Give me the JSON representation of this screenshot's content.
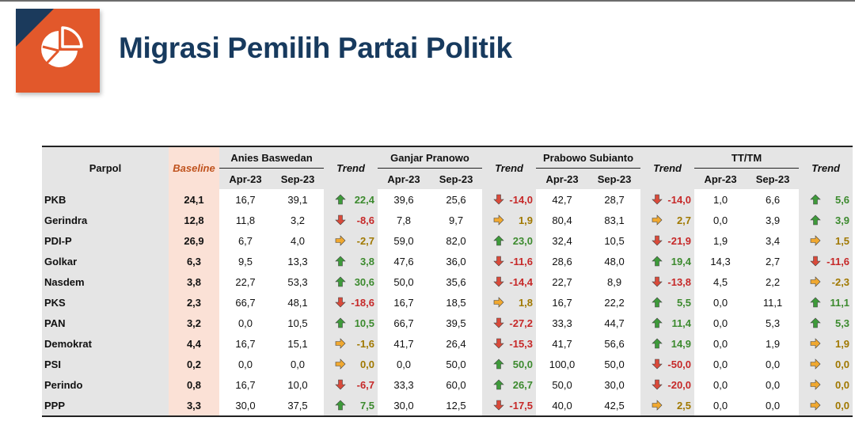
{
  "title": "Migrasi Pemilih Partai Politik",
  "logo_icon": "pie-chart-icon",
  "colors": {
    "logo_bg": "#e2582b",
    "logo_corner": "#1b3a5c",
    "title": "#173a5e",
    "trend_up": "#3c8a2e",
    "trend_down": "#c62828",
    "trend_flat": "#a07800",
    "arrow_up": "#3e9a3a",
    "arrow_down": "#d94a3a",
    "arrow_flat": "#f0a830"
  },
  "table": {
    "header": {
      "parpol": "Parpol",
      "baseline": "Baseline",
      "trend": "Trend",
      "groups": [
        "Anies Baswedan",
        "Ganjar Pranowo",
        "Prabowo Subianto",
        "TT/TM"
      ],
      "periods": [
        "Apr-23",
        "Sep-23"
      ]
    },
    "rows": [
      {
        "party": "PKB",
        "baseline": "24,1",
        "cells": [
          {
            "apr": "16,7",
            "sep": "39,1",
            "trend": "22,4",
            "dir": "up"
          },
          {
            "apr": "39,6",
            "sep": "25,6",
            "trend": "-14,0",
            "dir": "down"
          },
          {
            "apr": "42,7",
            "sep": "28,7",
            "trend": "-14,0",
            "dir": "down"
          },
          {
            "apr": "1,0",
            "sep": "6,6",
            "trend": "5,6",
            "dir": "up"
          }
        ]
      },
      {
        "party": "Gerindra",
        "baseline": "12,8",
        "cells": [
          {
            "apr": "11,8",
            "sep": "3,2",
            "trend": "-8,6",
            "dir": "down"
          },
          {
            "apr": "7,8",
            "sep": "9,7",
            "trend": "1,9",
            "dir": "flat"
          },
          {
            "apr": "80,4",
            "sep": "83,1",
            "trend": "2,7",
            "dir": "flat"
          },
          {
            "apr": "0,0",
            "sep": "3,9",
            "trend": "3,9",
            "dir": "up"
          }
        ]
      },
      {
        "party": "PDI-P",
        "baseline": "26,9",
        "cells": [
          {
            "apr": "6,7",
            "sep": "4,0",
            "trend": "-2,7",
            "dir": "flat"
          },
          {
            "apr": "59,0",
            "sep": "82,0",
            "trend": "23,0",
            "dir": "up"
          },
          {
            "apr": "32,4",
            "sep": "10,5",
            "trend": "-21,9",
            "dir": "down"
          },
          {
            "apr": "1,9",
            "sep": "3,4",
            "trend": "1,5",
            "dir": "flat"
          }
        ]
      },
      {
        "party": "Golkar",
        "baseline": "6,3",
        "cells": [
          {
            "apr": "9,5",
            "sep": "13,3",
            "trend": "3,8",
            "dir": "up"
          },
          {
            "apr": "47,6",
            "sep": "36,0",
            "trend": "-11,6",
            "dir": "down"
          },
          {
            "apr": "28,6",
            "sep": "48,0",
            "trend": "19,4",
            "dir": "up"
          },
          {
            "apr": "14,3",
            "sep": "2,7",
            "trend": "-11,6",
            "dir": "down"
          }
        ]
      },
      {
        "party": "Nasdem",
        "baseline": "3,8",
        "cells": [
          {
            "apr": "22,7",
            "sep": "53,3",
            "trend": "30,6",
            "dir": "up"
          },
          {
            "apr": "50,0",
            "sep": "35,6",
            "trend": "-14,4",
            "dir": "down"
          },
          {
            "apr": "22,7",
            "sep": "8,9",
            "trend": "-13,8",
            "dir": "down"
          },
          {
            "apr": "4,5",
            "sep": "2,2",
            "trend": "-2,3",
            "dir": "flat"
          }
        ]
      },
      {
        "party": "PKS",
        "baseline": "2,3",
        "cells": [
          {
            "apr": "66,7",
            "sep": "48,1",
            "trend": "-18,6",
            "dir": "down"
          },
          {
            "apr": "16,7",
            "sep": "18,5",
            "trend": "1,8",
            "dir": "flat"
          },
          {
            "apr": "16,7",
            "sep": "22,2",
            "trend": "5,5",
            "dir": "up"
          },
          {
            "apr": "0,0",
            "sep": "11,1",
            "trend": "11,1",
            "dir": "up"
          }
        ]
      },
      {
        "party": "PAN",
        "baseline": "3,2",
        "cells": [
          {
            "apr": "0,0",
            "sep": "10,5",
            "trend": "10,5",
            "dir": "up"
          },
          {
            "apr": "66,7",
            "sep": "39,5",
            "trend": "-27,2",
            "dir": "down"
          },
          {
            "apr": "33,3",
            "sep": "44,7",
            "trend": "11,4",
            "dir": "up"
          },
          {
            "apr": "0,0",
            "sep": "5,3",
            "trend": "5,3",
            "dir": "up"
          }
        ]
      },
      {
        "party": "Demokrat",
        "baseline": "4,4",
        "cells": [
          {
            "apr": "16,7",
            "sep": "15,1",
            "trend": "-1,6",
            "dir": "flat"
          },
          {
            "apr": "41,7",
            "sep": "26,4",
            "trend": "-15,3",
            "dir": "down"
          },
          {
            "apr": "41,7",
            "sep": "56,6",
            "trend": "14,9",
            "dir": "up"
          },
          {
            "apr": "0,0",
            "sep": "1,9",
            "trend": "1,9",
            "dir": "flat"
          }
        ]
      },
      {
        "party": "PSI",
        "baseline": "0,2",
        "cells": [
          {
            "apr": "0,0",
            "sep": "0,0",
            "trend": "0,0",
            "dir": "flat"
          },
          {
            "apr": "0,0",
            "sep": "50,0",
            "trend": "50,0",
            "dir": "up"
          },
          {
            "apr": "100,0",
            "sep": "50,0",
            "trend": "-50,0",
            "dir": "down"
          },
          {
            "apr": "0,0",
            "sep": "0,0",
            "trend": "0,0",
            "dir": "flat"
          }
        ]
      },
      {
        "party": "Perindo",
        "baseline": "0,8",
        "cells": [
          {
            "apr": "16,7",
            "sep": "10,0",
            "trend": "-6,7",
            "dir": "down"
          },
          {
            "apr": "33,3",
            "sep": "60,0",
            "trend": "26,7",
            "dir": "up"
          },
          {
            "apr": "50,0",
            "sep": "30,0",
            "trend": "-20,0",
            "dir": "down"
          },
          {
            "apr": "0,0",
            "sep": "0,0",
            "trend": "0,0",
            "dir": "flat"
          }
        ]
      },
      {
        "party": "PPP",
        "baseline": "3,3",
        "cells": [
          {
            "apr": "30,0",
            "sep": "37,5",
            "trend": "7,5",
            "dir": "up"
          },
          {
            "apr": "30,0",
            "sep": "12,5",
            "trend": "-17,5",
            "dir": "down"
          },
          {
            "apr": "40,0",
            "sep": "42,5",
            "trend": "2,5",
            "dir": "flat"
          },
          {
            "apr": "0,0",
            "sep": "0,0",
            "trend": "0,0",
            "dir": "flat"
          }
        ]
      }
    ]
  }
}
